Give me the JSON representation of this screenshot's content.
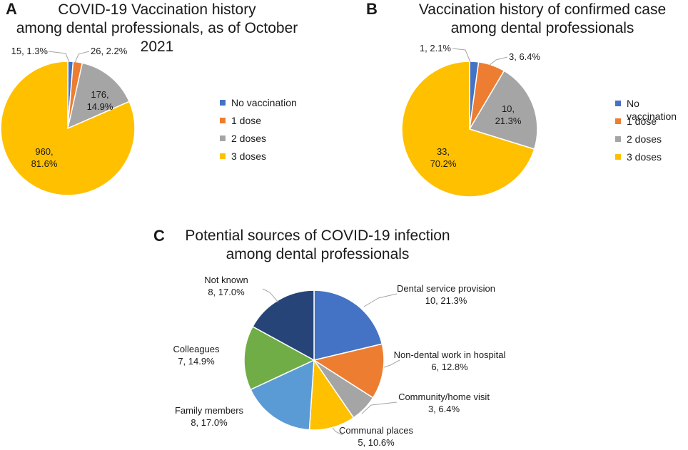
{
  "colors": {
    "no_vaccination": "#4472C4",
    "one_dose": "#ED7D31",
    "two_doses": "#A5A5A5",
    "three_doses": "#FFC000",
    "c_dental": "#4472C4",
    "c_nondental": "#ED7D31",
    "c_community": "#A5A5A5",
    "c_communal": "#FFC000",
    "c_family": "#5B9BD5",
    "c_colleagues": "#70AD47",
    "c_notknown": "#264478"
  },
  "chart_data": [
    {
      "panel": "A",
      "type": "pie",
      "title_lines": [
        "COVID-19 Vaccination history",
        "among dental professionals, as of October 2021"
      ],
      "categories": [
        "No vaccination",
        "1 dose",
        "2 doses",
        "3 doses"
      ],
      "values": [
        15,
        26,
        176,
        960
      ],
      "percents": [
        "1.3%",
        "2.2%",
        "14.9%",
        "81.6%"
      ],
      "data_labels": [
        [
          "15, 1.3%"
        ],
        [
          "26, 2.2%"
        ],
        [
          "176,",
          "14.9%"
        ],
        [
          "960,",
          "81.6%"
        ]
      ],
      "legend_position": "right"
    },
    {
      "panel": "B",
      "type": "pie",
      "title_lines": [
        "Vaccination history of confirmed case",
        "among dental professionals"
      ],
      "categories": [
        "No vaccination",
        "1 dose",
        "2 doses",
        "3 doses"
      ],
      "values": [
        1,
        3,
        10,
        33
      ],
      "percents": [
        "2.1%",
        "6.4%",
        "21.3%",
        "70.2%"
      ],
      "data_labels": [
        [
          "1, 2.1%"
        ],
        [
          "3, 6.4%"
        ],
        [
          "10,",
          "21.3%"
        ],
        [
          "33,",
          "70.2%"
        ]
      ],
      "legend_position": "right"
    },
    {
      "panel": "C",
      "type": "pie",
      "title_lines": [
        "Potential sources of COVID-19 infection",
        "among dental professionals"
      ],
      "categories": [
        "Dental service provision",
        "Non-dental work in hospital",
        "Community/home visit",
        "Communal places",
        "Family members",
        "Colleagues",
        "Not known"
      ],
      "values": [
        10,
        6,
        3,
        5,
        8,
        7,
        8
      ],
      "percents": [
        "21.3%",
        "12.8%",
        "6.4%",
        "10.6%",
        "17.0%",
        "14.9%",
        "17.0%"
      ],
      "data_labels": [
        [
          "Dental service provision",
          "10, 21.3%"
        ],
        [
          "Non-dental work in hospital",
          "6, 12.8%"
        ],
        [
          "Community/home visit",
          "3, 6.4%"
        ],
        [
          "Communal places",
          "5, 10.6%"
        ],
        [
          "Family members",
          "8, 17.0%"
        ],
        [
          "Colleagues",
          "7, 14.9%"
        ],
        [
          "Not known",
          "8, 17.0%"
        ]
      ],
      "legend_position": "none"
    }
  ]
}
